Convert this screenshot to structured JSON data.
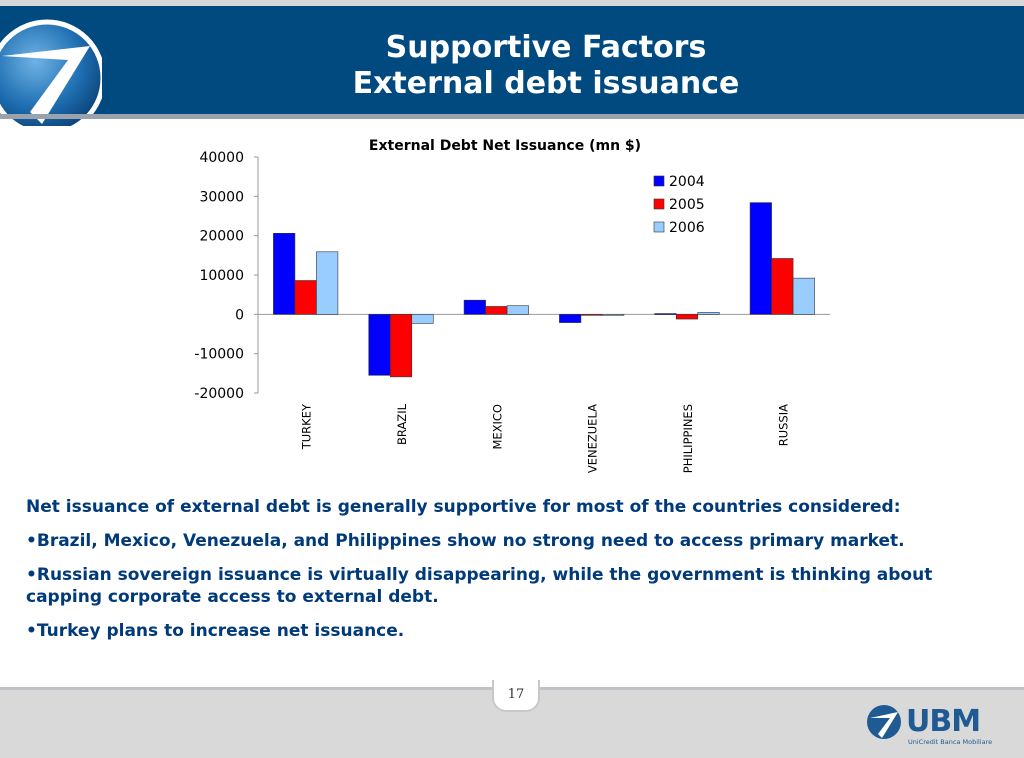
{
  "slide": {
    "title_line1": "Supportive Factors",
    "title_line2": "External debt issuance",
    "page_number": "17"
  },
  "chart_data": {
    "type": "bar",
    "title": "External Debt Net Issuance (mn $)",
    "categories": [
      "TURKEY",
      "BRAZIL",
      "MEXICO",
      "VENEZUELA",
      "PHILIPPINES",
      "RUSSIA"
    ],
    "series": [
      {
        "name": "2004",
        "values": [
          20600,
          -15500,
          3600,
          -2100,
          200,
          28400
        ],
        "color": "#0000ff"
      },
      {
        "name": "2005",
        "values": [
          8600,
          -15900,
          2000,
          -200,
          -1200,
          14200
        ],
        "color": "#ff0000"
      },
      {
        "name": "2006",
        "values": [
          15900,
          -2300,
          2200,
          -200,
          500,
          9200
        ],
        "color": "#99ccff"
      }
    ],
    "ylim": [
      -20000,
      40000
    ],
    "yticks": [
      "40000",
      "30000",
      "20000",
      "10000",
      "0",
      "-10000",
      "-20000"
    ],
    "ytick_values": [
      40000,
      30000,
      20000,
      10000,
      0,
      -10000,
      -20000
    ],
    "grid": false,
    "legend_position": "top-right"
  },
  "bullets": [
    "Net issuance of external debt is generally supportive for most of the countries considered:",
    "•Brazil, Mexico, Venezuela, and Philippines show no strong need to access primary market.",
    "•Russian sovereign issuance is virtually disappearing, while the government is thinking about capping corporate access to external debt.",
    "•Turkey plans to increase net issuance."
  ],
  "brand": {
    "name": "UBM",
    "subtitle": "UniCredit Banca Mobiliare",
    "color": "#1f5a93"
  },
  "colors": {
    "header": "#004a80",
    "body_text": "#003a7a"
  }
}
